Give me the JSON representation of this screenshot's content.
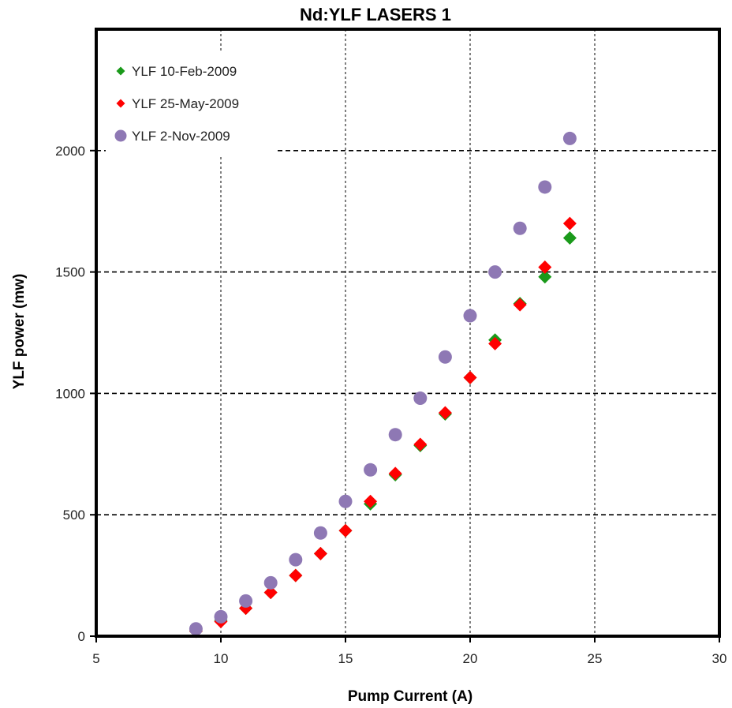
{
  "chart_data": {
    "type": "scatter",
    "title": "Nd:YLF LASERS 1",
    "xlabel": "Pump Current (A)",
    "ylabel": "YLF power (mw)",
    "xlim": [
      5,
      30
    ],
    "ylim": [
      0,
      2500
    ],
    "x_ticks": [
      5,
      10,
      15,
      20,
      25,
      30
    ],
    "y_ticks": [
      0,
      500,
      1000,
      1500,
      2000
    ],
    "grid": {
      "vertical": "dotted",
      "horizontal": "dashed"
    },
    "legend_position": "top-left",
    "series": [
      {
        "name": "YLF 10-Feb-2009",
        "marker": "diamond",
        "color": "#1a9a1a",
        "x": [
          9,
          10,
          11,
          12,
          13,
          14,
          15,
          16,
          17,
          18,
          19,
          20,
          21,
          22,
          23,
          24
        ],
        "y": [
          20,
          65,
          115,
          180,
          250,
          340,
          435,
          545,
          665,
          785,
          915,
          1065,
          1220,
          1370,
          1480,
          1640
        ]
      },
      {
        "name": "YLF 25-May-2009",
        "marker": "diamond",
        "color": "#ff0000",
        "x": [
          9,
          10,
          11,
          12,
          13,
          14,
          15,
          16,
          17,
          18,
          19,
          20,
          21,
          22,
          23,
          24
        ],
        "y": [
          20,
          60,
          115,
          180,
          250,
          340,
          435,
          555,
          670,
          790,
          920,
          1065,
          1205,
          1365,
          1520,
          1700
        ]
      },
      {
        "name": "YLF 2-Nov-2009",
        "marker": "circle",
        "color": "#8e78b4",
        "x": [
          9,
          10,
          11,
          12,
          13,
          14,
          15,
          16,
          17,
          18,
          19,
          20,
          21,
          22,
          23,
          24
        ],
        "y": [
          30,
          80,
          145,
          220,
          315,
          425,
          555,
          685,
          830,
          980,
          1150,
          1320,
          1500,
          1680,
          1850,
          2050
        ]
      }
    ]
  }
}
